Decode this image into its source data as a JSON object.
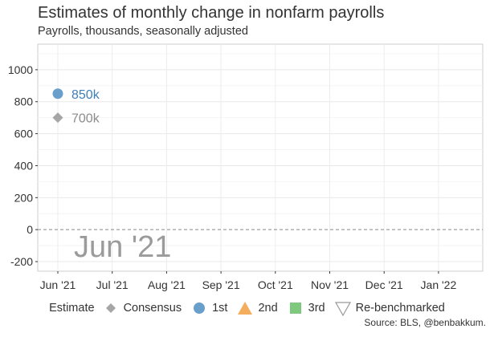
{
  "chart_data": {
    "type": "scatter",
    "title": "Estimates of monthly change in nonfarm payrolls",
    "subtitle": "Payrolls, thousands, seasonally adjusted",
    "source": "Source: BLS, @benbakkum.",
    "x_categories": [
      "Jun '21",
      "Jul '21",
      "Aug '21",
      "Sep '21",
      "Oct '21",
      "Nov '21",
      "Dec '21",
      "Jan '22"
    ],
    "ylim": [
      -260,
      1160
    ],
    "y_ticks": [
      1000,
      800,
      600,
      400,
      200,
      0,
      -200
    ],
    "y_tick_labels": [
      "1000",
      "800",
      "600",
      "400",
      "200",
      "0",
      "-200"
    ],
    "grid": true,
    "zero_line": "dashed",
    "watermark": "Jun '21",
    "legend": {
      "title": "Estimate",
      "placement": "bottom",
      "items": [
        {
          "label": "Consensus",
          "shape": "diamond",
          "color": "#a6a6a6"
        },
        {
          "label": "1st",
          "shape": "circle",
          "color": "#6a9fcc"
        },
        {
          "label": "2nd",
          "shape": "triangle",
          "color": "#f3ad5d"
        },
        {
          "label": "3rd",
          "shape": "square",
          "color": "#7ec97e"
        },
        {
          "label": "Re-benchmarked",
          "shape": "triangle-down-open",
          "color": "#9a9a9a"
        }
      ]
    },
    "series": [
      {
        "name": "1st",
        "shape": "circle",
        "color": "#6a9fcc",
        "x": "Jun '21",
        "y": 850,
        "label": "850k"
      },
      {
        "name": "Consensus",
        "shape": "diamond",
        "color": "#a6a6a6",
        "x": "Jun '21",
        "y": 700,
        "label": "700k"
      }
    ]
  }
}
